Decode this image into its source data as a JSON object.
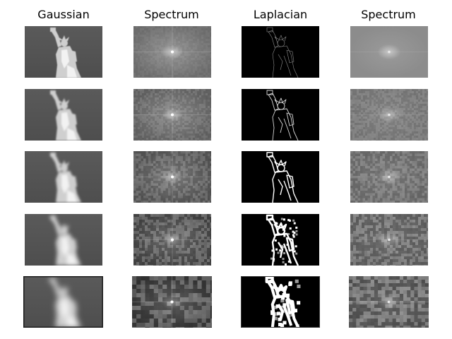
{
  "columns": [
    {
      "title": "Gaussian"
    },
    {
      "title": "Spectrum"
    },
    {
      "title": "Laplacian"
    },
    {
      "title": "Spectrum"
    }
  ],
  "rows": 5
}
